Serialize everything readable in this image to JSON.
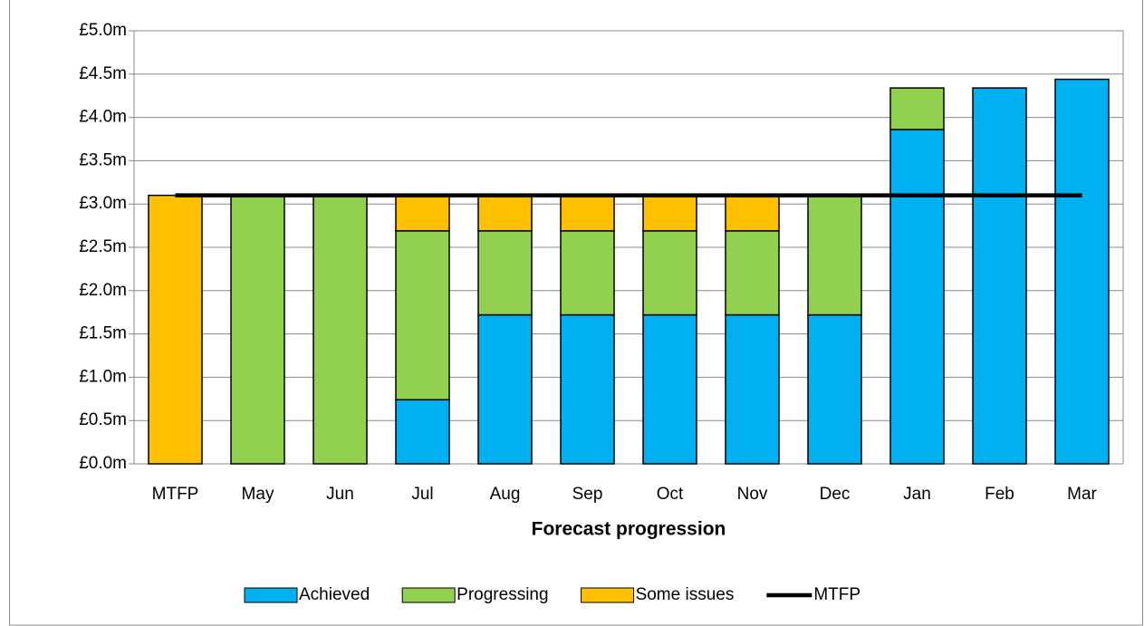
{
  "chart_data": {
    "type": "stacked-bar-line",
    "x_label": "Forecast progression",
    "categories": [
      "MTFP",
      "May",
      "Jun",
      "Jul",
      "Aug",
      "Sep",
      "Oct",
      "Nov",
      "Dec",
      "Jan",
      "Feb",
      "Mar"
    ],
    "series": [
      {
        "name": "Achieved",
        "color": "#00b0f0",
        "kind": "bar",
        "values": [
          null,
          null,
          null,
          0.74,
          1.72,
          1.72,
          1.72,
          1.72,
          1.72,
          3.86,
          4.34,
          4.44
        ]
      },
      {
        "name": "Progressing",
        "color": "#92d050",
        "kind": "bar",
        "values": [
          null,
          3.1,
          3.1,
          1.95,
          0.97,
          0.97,
          0.97,
          0.97,
          1.38,
          0.48,
          null,
          null
        ]
      },
      {
        "name": "Some issues",
        "color": "#ffc000",
        "kind": "bar",
        "values": [
          3.1,
          null,
          null,
          0.41,
          0.41,
          0.41,
          0.41,
          0.41,
          null,
          null,
          null,
          null
        ]
      },
      {
        "name": "MTFP",
        "color": "#000000",
        "kind": "line",
        "values": [
          3.1,
          3.1,
          3.1,
          3.1,
          3.1,
          3.1,
          3.1,
          3.1,
          3.1,
          3.1,
          3.1,
          3.1
        ]
      }
    ],
    "ylim": [
      0,
      5
    ],
    "yticks": [
      {
        "value": 0,
        "label": "£0.0m"
      },
      {
        "value": 0.5,
        "label": "£0.5m"
      },
      {
        "value": 1,
        "label": "£1.0m"
      },
      {
        "value": 1.5,
        "label": "£1.5m"
      },
      {
        "value": 2,
        "label": "£2.0m"
      },
      {
        "value": 2.5,
        "label": "£2.5m"
      },
      {
        "value": 3,
        "label": "£3.0m"
      },
      {
        "value": 3.5,
        "label": "£3.5m"
      },
      {
        "value": 4,
        "label": "£4.0m"
      },
      {
        "value": 4.5,
        "label": "£4.5m"
      },
      {
        "value": 5,
        "label": "£5.0m"
      }
    ],
    "grid": true,
    "legend": "bottom"
  }
}
